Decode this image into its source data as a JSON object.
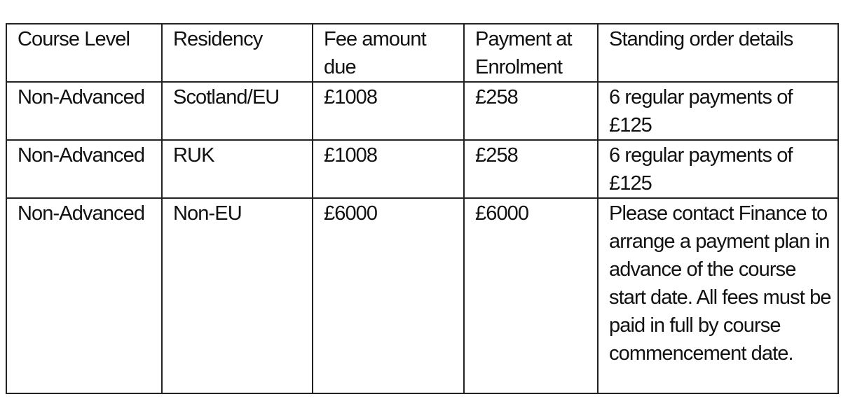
{
  "table": {
    "headers": [
      "Course Level",
      "Residency",
      "Fee amount due",
      "Payment at Enrolment",
      "Standing order details"
    ],
    "rows": [
      [
        "Non-Advanced",
        "Scotland/EU",
        "£1008",
        "£258",
        "6 regular payments of £125"
      ],
      [
        "Non-Advanced",
        "RUK",
        "£1008",
        "£258",
        "6 regular payments of £125"
      ],
      [
        "Non-Advanced",
        "Non-EU",
        "£6000",
        "£6000",
        "Please contact Finance to arrange a payment plan in advance of the course start date.  All fees must be paid in full by course commencement date."
      ]
    ]
  }
}
